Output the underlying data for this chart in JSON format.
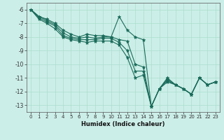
{
  "xlabel": "Humidex (Indice chaleur)",
  "background_color": "#cceee8",
  "grid_color": "#aaddcc",
  "line_color": "#1a6b5a",
  "xlim": [
    -0.5,
    23.5
  ],
  "ylim": [
    -13.5,
    -5.5
  ],
  "yticks": [
    -6,
    -7,
    -8,
    -9,
    -10,
    -11,
    -12,
    -13
  ],
  "xticks": [
    0,
    1,
    2,
    3,
    4,
    5,
    6,
    7,
    8,
    9,
    10,
    11,
    12,
    13,
    14,
    15,
    16,
    17,
    18,
    19,
    20,
    21,
    22,
    23
  ],
  "series": [
    {
      "x": [
        0,
        1,
        2,
        3,
        4,
        5,
        6,
        7,
        8,
        9,
        10,
        11,
        12,
        13,
        14,
        15,
        16,
        17,
        18,
        19,
        20,
        21,
        22,
        23
      ],
      "y": [
        -6,
        -6.5,
        -6.7,
        -7.0,
        -7.5,
        -7.8,
        -8.0,
        -7.8,
        -7.9,
        -7.9,
        -8.0,
        -6.5,
        -7.5,
        -8.0,
        -8.2,
        -13.1,
        -11.8,
        -11.0,
        -11.5,
        -11.8,
        -12.2,
        -11.0,
        -11.5,
        -11.3
      ]
    },
    {
      "x": [
        0,
        1,
        2,
        3,
        4,
        5,
        6,
        7,
        8,
        9,
        10,
        11,
        12,
        13,
        14,
        15,
        16,
        17,
        18,
        19,
        20,
        21,
        22,
        23
      ],
      "y": [
        -6,
        -6.5,
        -6.8,
        -7.1,
        -7.7,
        -8.0,
        -8.1,
        -8.0,
        -8.1,
        -8.0,
        -8.0,
        -8.2,
        -8.3,
        -10.0,
        -10.2,
        -13.1,
        -11.8,
        -11.1,
        -11.5,
        -11.8,
        -12.2,
        -11.0,
        -11.5,
        -11.3
      ]
    },
    {
      "x": [
        0,
        1,
        2,
        3,
        4,
        5,
        6,
        7,
        8,
        9,
        10,
        11,
        12,
        13,
        14,
        15,
        16,
        17,
        18,
        19,
        20,
        21,
        22,
        23
      ],
      "y": [
        -6,
        -6.6,
        -6.9,
        -7.2,
        -7.9,
        -8.1,
        -8.2,
        -8.2,
        -8.2,
        -8.1,
        -8.1,
        -8.4,
        -9.0,
        -10.5,
        -10.5,
        -13.1,
        -11.8,
        -11.2,
        -11.5,
        -11.8,
        -12.2,
        -11.0,
        -11.5,
        -11.3
      ]
    },
    {
      "x": [
        0,
        1,
        2,
        3,
        4,
        5,
        6,
        7,
        8,
        9,
        10,
        11,
        12,
        13,
        14,
        15,
        16,
        17,
        18,
        19,
        20,
        21,
        22,
        23
      ],
      "y": [
        -6,
        -6.7,
        -7.0,
        -7.4,
        -8.0,
        -8.2,
        -8.3,
        -8.4,
        -8.3,
        -8.3,
        -8.3,
        -8.6,
        -9.5,
        -11.0,
        -10.8,
        -13.1,
        -11.8,
        -11.3,
        -11.5,
        -11.8,
        -12.2,
        -11.0,
        -11.5,
        -11.3
      ]
    }
  ]
}
